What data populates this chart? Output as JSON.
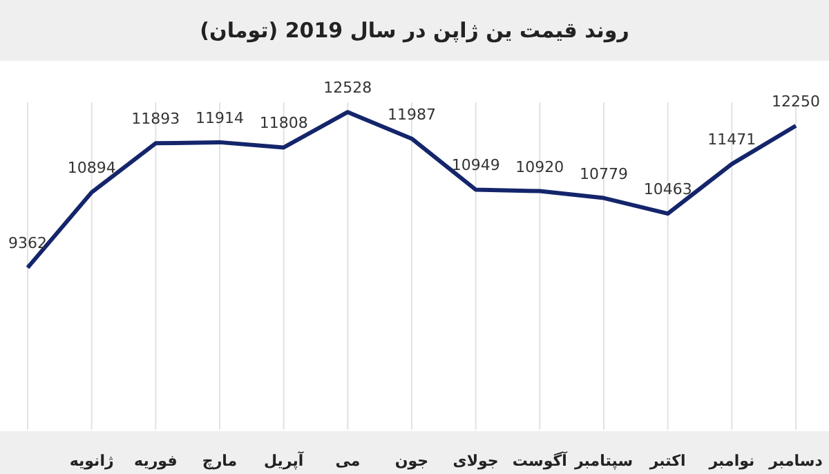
{
  "chart_data": {
    "type": "line",
    "title": "روند قیمت ین ژاپن در سال 2019 (تومان)",
    "categories": [
      null,
      "ژانویه",
      "فوریه",
      "مارچ",
      "آپریل",
      "می",
      "جون",
      "جولای",
      "آگوست",
      "سپتامبر",
      "اکتبر",
      "نوامبر",
      "دسامبر"
    ],
    "series": [
      {
        "color": "#14256b",
        "values": [
          9362,
          10894,
          11893,
          11914,
          11808,
          12528,
          11987,
          10949,
          10920,
          10779,
          10463,
          11471,
          12250
        ]
      }
    ],
    "data_labels": true,
    "grid": "x",
    "marker": "none",
    "line_style": "solid"
  }
}
